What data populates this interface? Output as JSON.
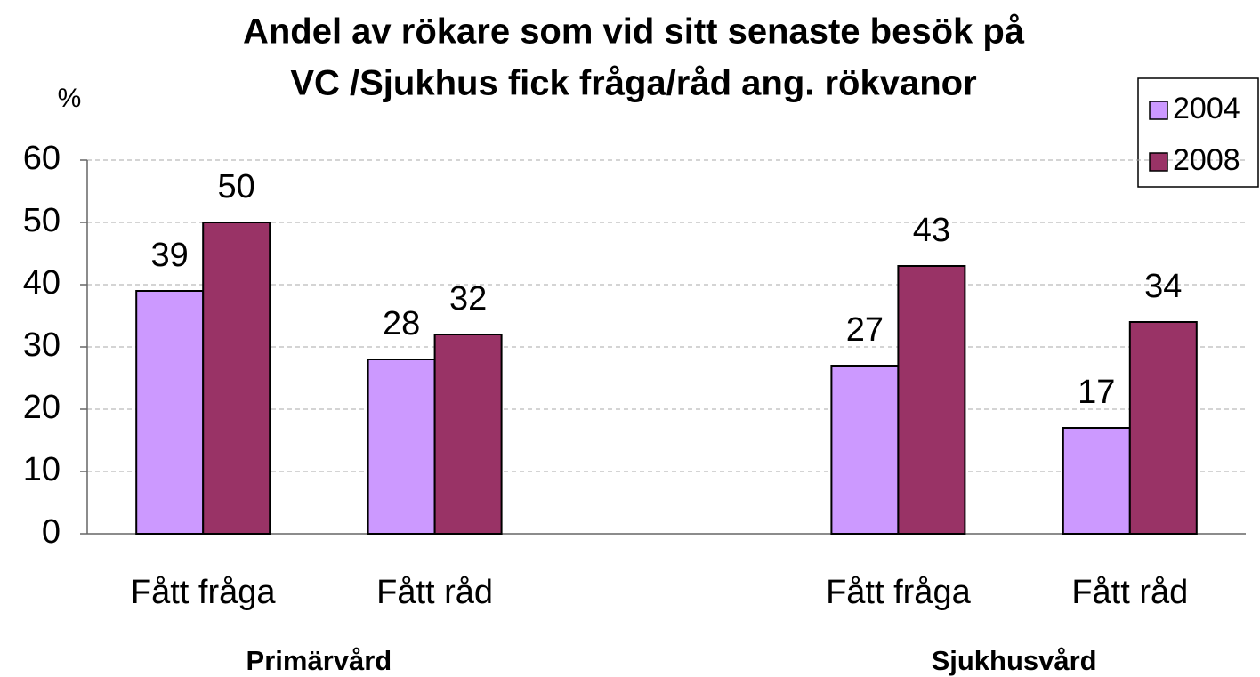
{
  "chart_data": {
    "type": "bar",
    "title": [
      "Andel av rökare som vid sitt senaste besök på",
      "VC /Sjukhus fick fråga/råd ang. rökvanor"
    ],
    "y_label": "%",
    "categories": [
      "Fått fråga",
      "Fått råd",
      null,
      "Fått fråga",
      "Fått råd"
    ],
    "groups": [
      "Primärvård",
      "Sjukhusvård"
    ],
    "series": [
      {
        "name": "2004",
        "color": "#cc99ff",
        "values": [
          39,
          28,
          null,
          27,
          17
        ]
      },
      {
        "name": "2008",
        "color": "#993366",
        "values": [
          50,
          32,
          null,
          43,
          34
        ]
      }
    ],
    "ylim": [
      0,
      60
    ],
    "yticks": [
      0,
      10,
      20,
      30,
      40,
      50,
      60
    ],
    "grid": true,
    "legend": "top-right"
  }
}
